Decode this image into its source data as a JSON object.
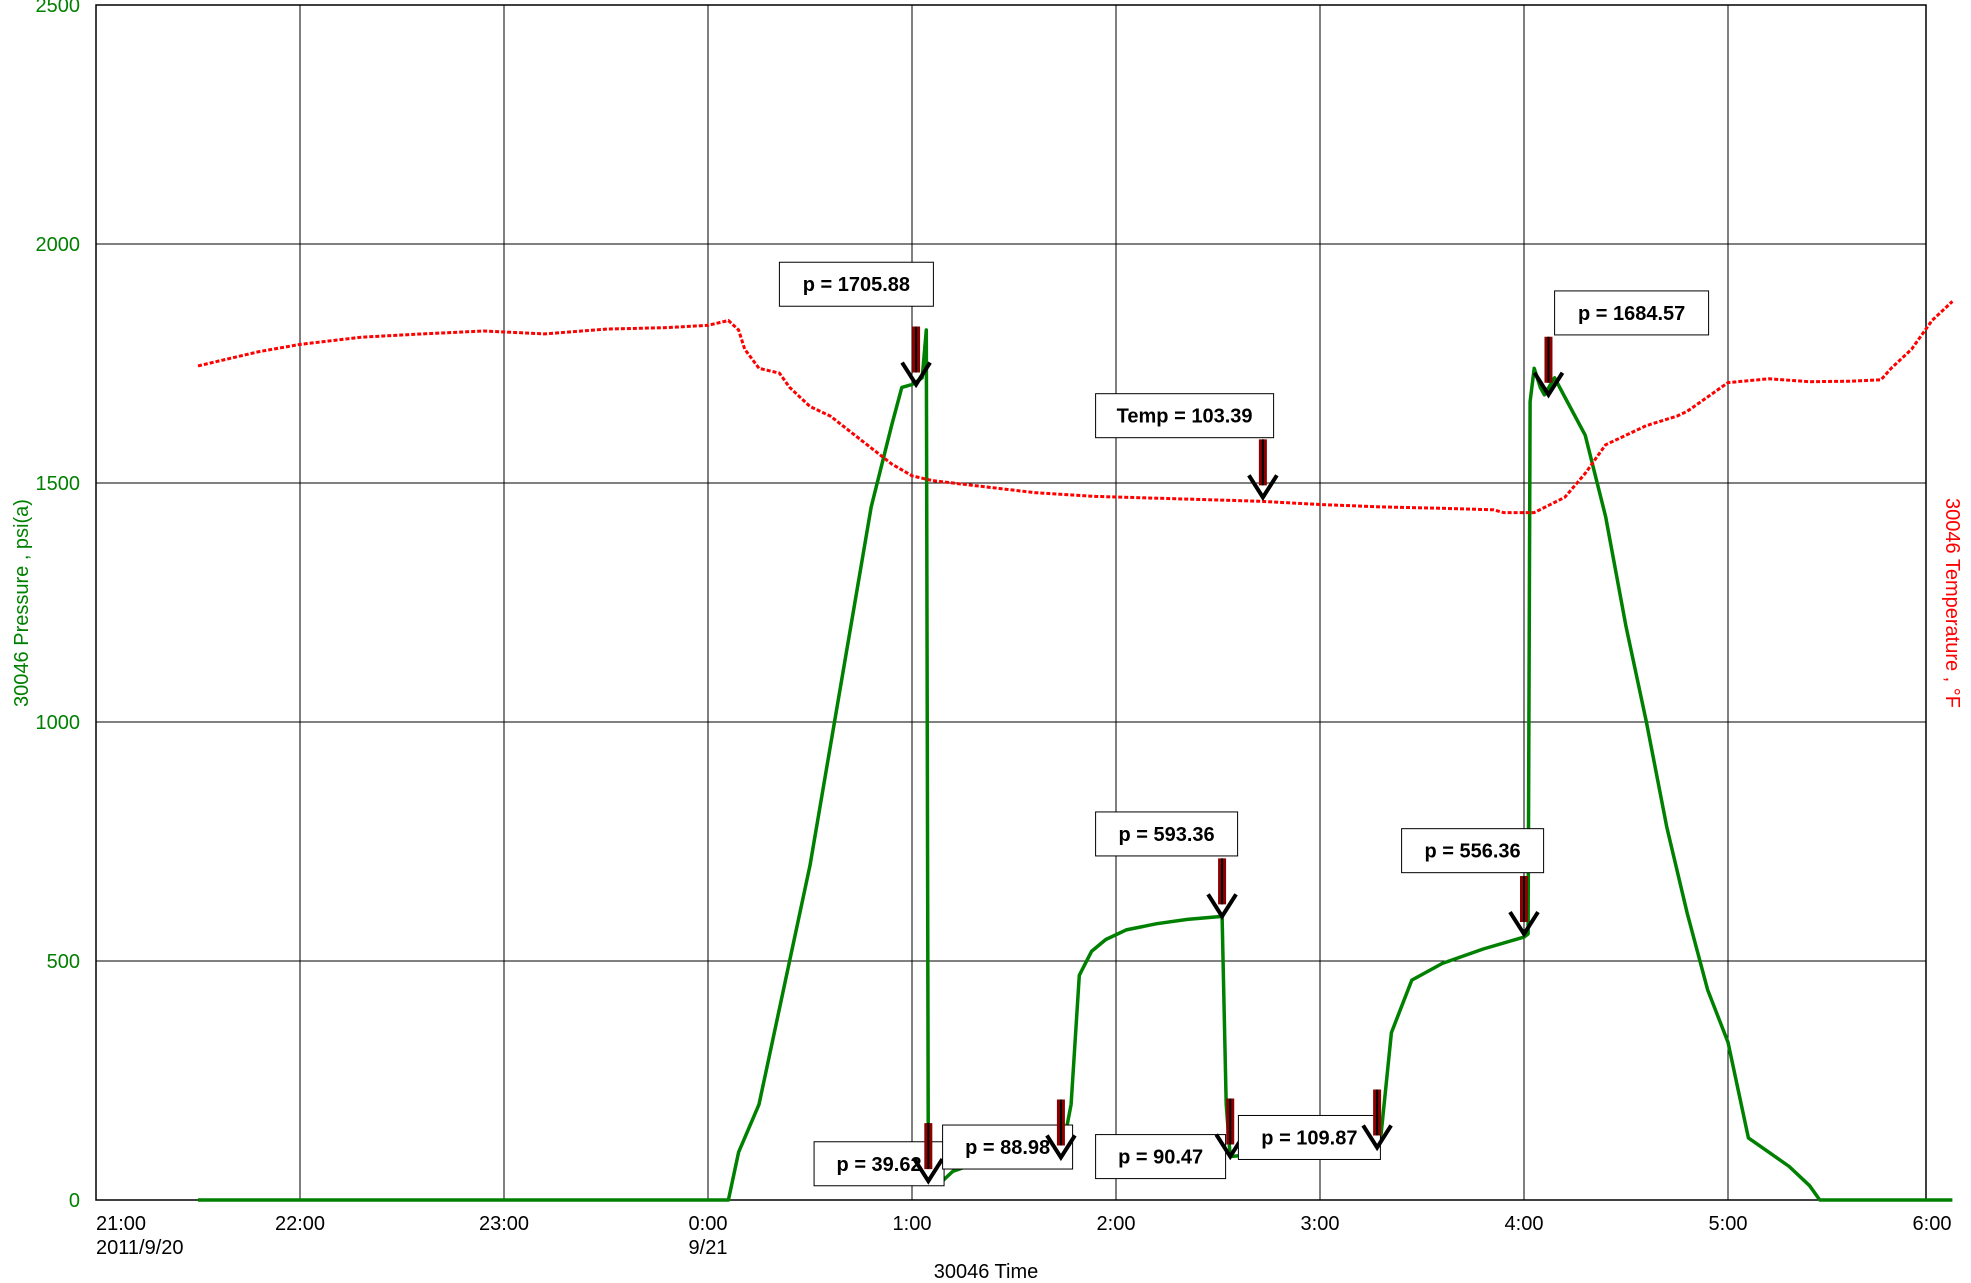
{
  "chart_data": {
    "type": "line",
    "xlabel": "30046 Time",
    "ylabel_left": "30046 Pressure , psi(a)",
    "ylabel_right": "30046 Temperature , °F",
    "ylim_left": [
      0,
      2500
    ],
    "yticks_left": [
      "0",
      "500",
      "1000",
      "1500",
      "2000",
      "2500"
    ],
    "xlim_hours": [
      21,
      30.1
    ],
    "xticks": [
      {
        "label": "21:00",
        "sub": "2011/9/20"
      },
      {
        "label": "22:00",
        "sub": ""
      },
      {
        "label": "23:00",
        "sub": ""
      },
      {
        "label": "0:00",
        "sub": "9/21"
      },
      {
        "label": "1:00",
        "sub": ""
      },
      {
        "label": "2:00",
        "sub": ""
      },
      {
        "label": "3:00",
        "sub": ""
      },
      {
        "label": "4:00",
        "sub": ""
      },
      {
        "label": "5:00",
        "sub": ""
      },
      {
        "label": "6:00",
        "sub": ""
      }
    ],
    "grid": true,
    "colors": {
      "pressure": "#008000",
      "temperature": "#ff0000",
      "arrow": "#8b0000"
    },
    "series": [
      {
        "name": "30046 Pressure",
        "axis": "left",
        "x": [
          21.5,
          24.1,
          24.15,
          24.25,
          24.3,
          24.4,
          24.5,
          24.6,
          24.7,
          24.8,
          24.9,
          24.95,
          25.0,
          25.05,
          25.07,
          25.08,
          25.1,
          25.15,
          25.2,
          25.3,
          25.5,
          25.7,
          25.73,
          25.78,
          25.82,
          25.88,
          25.95,
          26.05,
          26.2,
          26.35,
          26.52,
          26.54,
          26.56,
          26.7,
          26.9,
          27.1,
          27.28,
          27.3,
          27.35,
          27.45,
          27.6,
          27.8,
          28.0,
          28.02,
          28.03,
          28.05,
          28.08,
          28.1,
          28.15,
          28.2,
          28.3,
          28.4,
          28.5,
          28.6,
          28.7,
          28.8,
          28.9,
          29.0,
          29.05,
          29.1,
          29.2,
          29.3,
          29.4,
          29.45,
          29.5,
          29.55,
          30.1
        ],
        "y": [
          0,
          0,
          100,
          200,
          300,
          500,
          700,
          950,
          1200,
          1450,
          1620,
          1700,
          1706,
          1720,
          1820,
          80,
          39.6,
          40,
          60,
          75,
          80,
          84,
          89,
          200,
          470,
          520,
          545,
          565,
          578,
          587,
          593.4,
          200,
          91,
          96,
          101,
          106,
          109.9,
          140,
          350,
          460,
          495,
          525,
          550,
          556.4,
          1670,
          1740,
          1700,
          1684.6,
          1720,
          1680,
          1600,
          1430,
          1200,
          1000,
          780,
          600,
          440,
          330,
          230,
          130,
          100,
          70,
          30,
          0,
          0,
          0,
          0
        ]
      },
      {
        "name": "30046 Temperature",
        "axis": "right",
        "x": [
          21.5,
          21.6,
          21.8,
          22.0,
          22.3,
          22.6,
          22.9,
          23.2,
          23.5,
          23.8,
          24.0,
          24.1,
          24.15,
          24.18,
          24.25,
          24.35,
          24.4,
          24.5,
          24.6,
          24.75,
          24.9,
          25.0,
          25.1,
          25.3,
          25.6,
          25.9,
          26.3,
          26.7,
          27.0,
          27.3,
          27.6,
          27.85,
          27.9,
          28.05,
          28.2,
          28.3,
          28.4,
          28.6,
          28.75,
          28.8,
          28.9,
          29.0,
          29.2,
          29.4,
          29.6,
          29.75,
          29.8,
          29.9,
          30.0,
          30.1
        ],
        "y": [
          1745,
          1755,
          1775,
          1790,
          1805,
          1812,
          1818,
          1812,
          1822,
          1825,
          1830,
          1840,
          1820,
          1780,
          1740,
          1730,
          1700,
          1660,
          1640,
          1590,
          1540,
          1515,
          1505,
          1495,
          1480,
          1472,
          1467,
          1462,
          1455,
          1450,
          1447,
          1444,
          1438,
          1438,
          1470,
          1520,
          1580,
          1620,
          1640,
          1650,
          1680,
          1710,
          1718,
          1712,
          1713,
          1716,
          1740,
          1780,
          1840,
          1880
        ]
      }
    ],
    "annotations": [
      {
        "text": "p = 1705.88",
        "x": 25.02,
        "y": 1706,
        "label_x": 24.35,
        "label_y": 1920
      },
      {
        "text": "p = 39.62",
        "x": 25.08,
        "y": 39.6,
        "label_x": 24.52,
        "label_y": 80
      },
      {
        "text": "p = 88.98",
        "x": 25.73,
        "y": 89,
        "label_x": 25.15,
        "label_y": 115
      },
      {
        "text": "Temp = 103.39",
        "x": 26.72,
        "y": 1470,
        "label_x": 25.9,
        "label_y": 1645
      },
      {
        "text": "p = 593.36",
        "x": 26.52,
        "y": 593.4,
        "label_x": 25.9,
        "label_y": 770
      },
      {
        "text": "p = 90.47",
        "x": 26.56,
        "y": 91,
        "label_x": 25.9,
        "label_y": 95
      },
      {
        "text": "p = 109.87",
        "x": 27.28,
        "y": 109.9,
        "label_x": 26.6,
        "label_y": 135
      },
      {
        "text": "p = 556.36",
        "x": 28.0,
        "y": 556.4,
        "label_x": 27.4,
        "label_y": 735
      },
      {
        "text": "p = 1684.57",
        "x": 28.12,
        "y": 1684.6,
        "label_x": 28.15,
        "label_y": 1860
      }
    ]
  }
}
